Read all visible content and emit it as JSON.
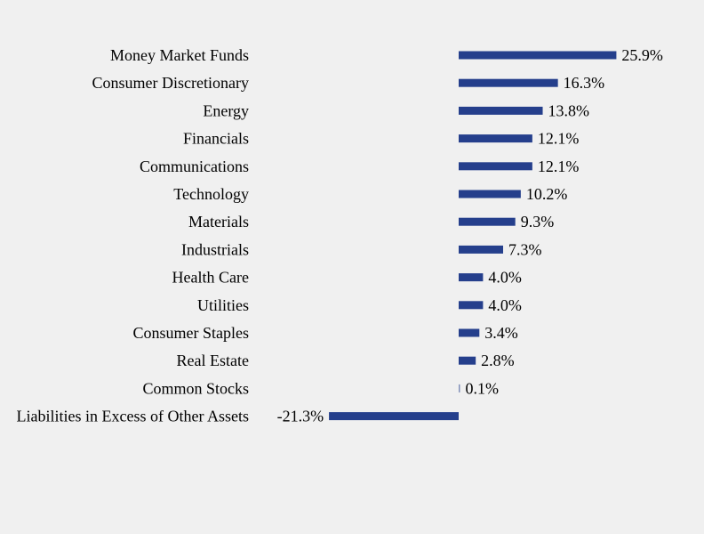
{
  "chart_data": {
    "type": "bar",
    "orientation": "horizontal",
    "categories": [
      "Money Market Funds",
      "Consumer Discretionary",
      "Energy",
      "Financials",
      "Communications",
      "Technology",
      "Materials",
      "Industrials",
      "Health Care",
      "Utilities",
      "Consumer Staples",
      "Real Estate",
      "Common Stocks",
      "Liabilities in Excess of Other Assets"
    ],
    "values": [
      25.9,
      16.3,
      13.8,
      12.1,
      12.1,
      10.2,
      9.3,
      7.3,
      4.0,
      4.0,
      3.4,
      2.8,
      0.1,
      -21.3
    ],
    "value_labels": [
      "25.9%",
      "16.3%",
      "13.8%",
      "12.1%",
      "12.1%",
      "10.2%",
      "9.3%",
      "7.3%",
      "4.0%",
      "4.0%",
      "3.4%",
      "2.8%",
      "0.1%",
      "-21.3%"
    ],
    "unit": "%",
    "xlim": [
      -21.3,
      25.9
    ],
    "title": "",
    "xlabel": "",
    "ylabel": "",
    "grid": false,
    "legend": "none",
    "bar_color": "#253f8c",
    "background_color": "#f0f0f0"
  }
}
